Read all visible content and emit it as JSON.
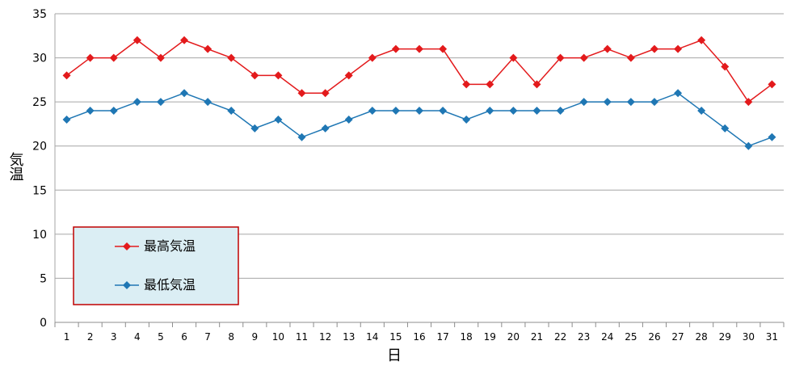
{
  "chart_data": {
    "type": "line",
    "title": "",
    "xlabel": "日",
    "ylabel": "気温",
    "x": [
      1,
      2,
      3,
      4,
      5,
      6,
      7,
      8,
      9,
      10,
      11,
      12,
      13,
      14,
      15,
      16,
      17,
      18,
      19,
      20,
      21,
      22,
      23,
      24,
      25,
      26,
      27,
      28,
      29,
      30,
      31
    ],
    "ylim": [
      0,
      35
    ],
    "yticks": [
      0,
      5,
      10,
      15,
      20,
      25,
      30,
      35
    ],
    "grid": true,
    "legend_position": "bottom-left",
    "series": [
      {
        "name": "最高気温",
        "color": "#e31a1c",
        "marker": "diamond",
        "values": [
          28,
          30,
          30,
          32,
          30,
          32,
          31,
          30,
          28,
          28,
          26,
          26,
          28,
          30,
          31,
          31,
          31,
          27,
          27,
          30,
          27,
          30,
          30,
          31,
          30,
          31,
          31,
          32,
          29,
          25,
          27
        ]
      },
      {
        "name": "最低気温",
        "color": "#1f77b4",
        "marker": "diamond",
        "values": [
          23,
          24,
          24,
          25,
          25,
          26,
          25,
          24,
          22,
          23,
          21,
          22,
          23,
          24,
          24,
          24,
          24,
          23,
          24,
          24,
          24,
          24,
          25,
          25,
          25,
          25,
          26,
          24,
          22,
          20,
          21
        ]
      }
    ]
  },
  "legend": {
    "background": "#dbeef4",
    "border": "#c00000"
  }
}
